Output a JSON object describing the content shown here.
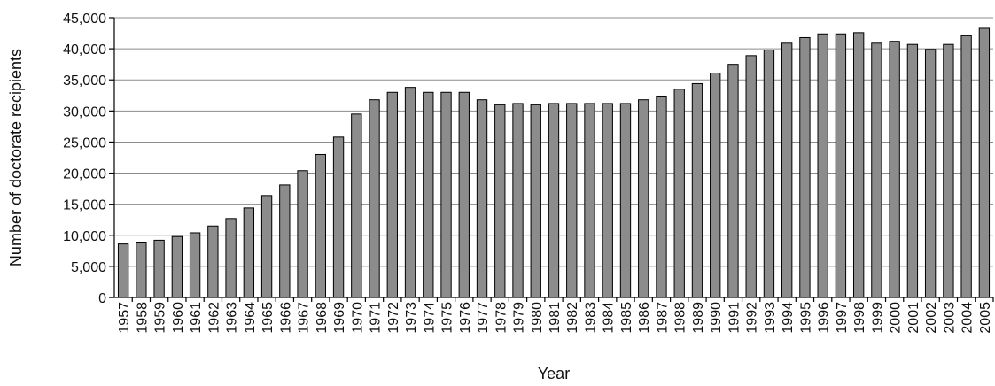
{
  "chart_data": {
    "type": "bar",
    "xlabel": "Year",
    "ylabel": "Number of doctorate recipients",
    "ylim": [
      0,
      45000
    ],
    "yticks": [
      0,
      5000,
      10000,
      15000,
      20000,
      25000,
      30000,
      35000,
      40000,
      45000
    ],
    "ytick_labels": [
      "0",
      "5,000",
      "10,000",
      "15,000",
      "20,000",
      "25,000",
      "30,000",
      "35,000",
      "40,000",
      "45,000"
    ],
    "grid": true,
    "legend": "none",
    "bar_color": "#8c8c8c",
    "categories": [
      "1957",
      "1958",
      "1959",
      "1960",
      "1961",
      "1962",
      "1963",
      "1964",
      "1965",
      "1966",
      "1967",
      "1968",
      "1969",
      "1970",
      "1971",
      "1972",
      "1973",
      "1974",
      "1975",
      "1976",
      "1977",
      "1978",
      "1979",
      "1980",
      "1981",
      "1982",
      "1983",
      "1984",
      "1985",
      "1986",
      "1987",
      "1988",
      "1989",
      "1990",
      "1991",
      "1992",
      "1993",
      "1994",
      "1995",
      "1996",
      "1997",
      "1998",
      "1999",
      "2000",
      "2001",
      "2002",
      "2003",
      "2004",
      "2005"
    ],
    "values": [
      8600,
      8900,
      9200,
      9800,
      10400,
      11500,
      12700,
      14400,
      16400,
      18100,
      20400,
      23000,
      25800,
      29500,
      31800,
      33000,
      33800,
      33000,
      33000,
      33000,
      31800,
      31000,
      31200,
      31000,
      31200,
      31200,
      31200,
      31200,
      31200,
      31800,
      32400,
      33500,
      34400,
      36100,
      37500,
      38900,
      39800,
      40900,
      41800,
      42400,
      42400,
      42600,
      40900,
      41200,
      40700,
      39900,
      40700,
      42100,
      43300
    ]
  }
}
